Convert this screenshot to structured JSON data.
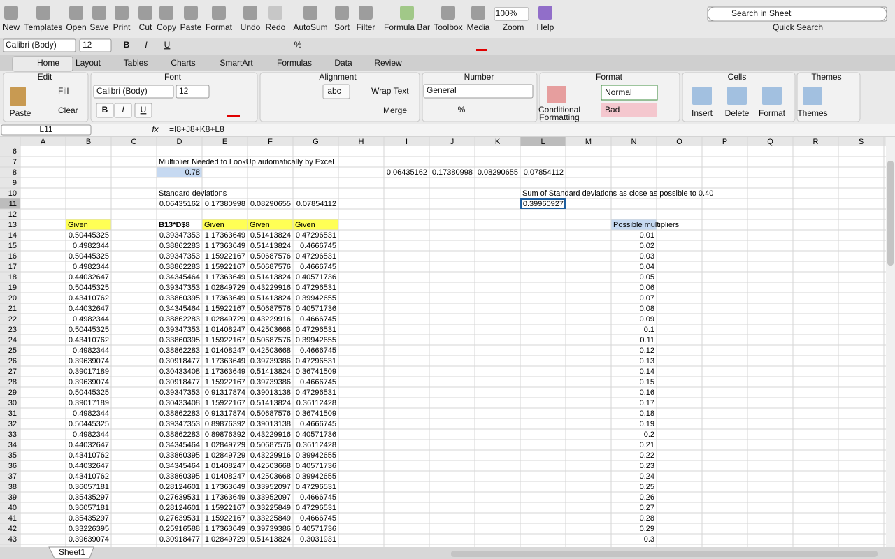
{
  "toolbar": {
    "buttons": [
      "New",
      "Templates",
      "Open",
      "Save",
      "Print",
      "Cut",
      "Copy",
      "Paste",
      "Format",
      "Undo",
      "Redo",
      "AutoSum",
      "Sort",
      "Filter",
      "Formula Bar",
      "Toolbox",
      "Media",
      "Zoom",
      "Help"
    ],
    "zoom": "100%",
    "search_placeholder": "Search in Sheet",
    "search_label": "Quick Search",
    "font": "Calibri (Body)",
    "font_size": "12",
    "format_buttons": [
      "B",
      "I",
      "U"
    ],
    "percent": "%"
  },
  "ribbon": {
    "tabs": [
      "Home",
      "Layout",
      "Tables",
      "Charts",
      "SmartArt",
      "Formulas",
      "Data",
      "Review"
    ],
    "groups": [
      "Edit",
      "Font",
      "Alignment",
      "Number",
      "Format",
      "Cells",
      "Themes"
    ],
    "controls": {
      "paste": "Paste",
      "fill": "Fill",
      "clear": "Clear",
      "font": "Calibri (Body)",
      "font_size": "12",
      "bold": "B",
      "italic": "I",
      "underline": "U",
      "abc": "abc",
      "wrap_text": "Wrap Text",
      "merge": "Merge",
      "number_format": "General",
      "percent": "%",
      "conditional_formatting": [
        "Conditional",
        "Formatting"
      ],
      "style_normal": "Normal",
      "style_bad": "Bad",
      "insert": "Insert",
      "delete": "Delete",
      "format": "Format",
      "themes": "Themes"
    }
  },
  "formula_bar": {
    "cell": "L11",
    "fx": "fx",
    "formula": "=I8+J8+K8+L8"
  },
  "sheet": {
    "columns": [
      "A",
      "B",
      "C",
      "D",
      "E",
      "F",
      "G",
      "H",
      "I",
      "J",
      "K",
      "L",
      "M",
      "N",
      "O",
      "P",
      "Q",
      "R",
      "S"
    ],
    "rows": [
      {
        "n": 6
      },
      {
        "n": 7,
        "D": "Multiplier Needed to LookUp automatically by Excel"
      },
      {
        "n": 8,
        "D": 0.78,
        "I": 0.06435162,
        "J": 0.17380998,
        "K": 0.08290655,
        "L": 0.07854112
      },
      {
        "n": 9
      },
      {
        "n": 10,
        "D": "Standard deviations",
        "L": "Sum of Standard deviations as close as possible to 0.40"
      },
      {
        "n": 11,
        "D": 0.06435162,
        "E": 0.17380998,
        "F": 0.08290655,
        "G": 0.07854112,
        "L": 0.39960927
      },
      {
        "n": 12
      },
      {
        "n": 13,
        "B": "Given",
        "D": "B13*D$8",
        "E": "Given",
        "F": "Given",
        "G": "Given",
        "N": "Possible multipliers"
      },
      {
        "n": 14,
        "B": 0.50445325,
        "D": 0.39347353,
        "E": 1.17363649,
        "F": 0.51413824,
        "G": 0.47296531,
        "N": 0.01
      },
      {
        "n": 15,
        "B": 0.4982344,
        "D": 0.38862283,
        "E": 1.17363649,
        "F": 0.51413824,
        "G": 0.4666745,
        "N": 0.02
      },
      {
        "n": 16,
        "B": 0.50445325,
        "D": 0.39347353,
        "E": 1.15922167,
        "F": 0.50687576,
        "G": 0.47296531,
        "N": 0.03
      },
      {
        "n": 17,
        "B": 0.4982344,
        "D": 0.38862283,
        "E": 1.15922167,
        "F": 0.50687576,
        "G": 0.4666745,
        "N": 0.04
      },
      {
        "n": 18,
        "B": 0.44032647,
        "D": 0.34345464,
        "E": 1.17363649,
        "F": 0.51413824,
        "G": 0.40571736,
        "N": 0.05
      },
      {
        "n": 19,
        "B": 0.50445325,
        "D": 0.39347353,
        "E": 1.02849729,
        "F": 0.43229916,
        "G": 0.47296531,
        "N": 0.06
      },
      {
        "n": 20,
        "B": 0.43410762,
        "D": 0.33860395,
        "E": 1.17363649,
        "F": 0.51413824,
        "G": 0.39942655,
        "N": 0.07
      },
      {
        "n": 21,
        "B": 0.44032647,
        "D": 0.34345464,
        "E": 1.15922167,
        "F": 0.50687576,
        "G": 0.40571736,
        "N": 0.08
      },
      {
        "n": 22,
        "B": 0.4982344,
        "D": 0.38862283,
        "E": 1.02849729,
        "F": 0.43229916,
        "G": 0.4666745,
        "N": 0.09
      },
      {
        "n": 23,
        "B": 0.50445325,
        "D": 0.39347353,
        "E": 1.01408247,
        "F": 0.42503668,
        "G": 0.47296531,
        "N": 0.1
      },
      {
        "n": 24,
        "B": 0.43410762,
        "D": 0.33860395,
        "E": 1.15922167,
        "F": 0.50687576,
        "G": 0.39942655,
        "N": 0.11
      },
      {
        "n": 25,
        "B": 0.4982344,
        "D": 0.38862283,
        "E": 1.01408247,
        "F": 0.42503668,
        "G": 0.4666745,
        "N": 0.12
      },
      {
        "n": 26,
        "B": 0.39639074,
        "D": 0.30918477,
        "E": 1.17363649,
        "F": 0.39739386,
        "G": 0.47296531,
        "N": 0.13
      },
      {
        "n": 27,
        "B": 0.39017189,
        "D": 0.30433408,
        "E": 1.17363649,
        "F": 0.51413824,
        "G": 0.36741509,
        "N": 0.14
      },
      {
        "n": 28,
        "B": 0.39639074,
        "D": 0.30918477,
        "E": 1.15922167,
        "F": 0.39739386,
        "G": 0.4666745,
        "N": 0.15
      },
      {
        "n": 29,
        "B": 0.50445325,
        "D": 0.39347353,
        "E": 0.91317874,
        "F": 0.39013138,
        "G": 0.47296531,
        "N": 0.16
      },
      {
        "n": 30,
        "B": 0.39017189,
        "D": 0.30433408,
        "E": 1.15922167,
        "F": 0.51413824,
        "G": 0.36112428,
        "N": 0.17
      },
      {
        "n": 31,
        "B": 0.4982344,
        "D": 0.38862283,
        "E": 0.91317874,
        "F": 0.50687576,
        "G": 0.36741509,
        "N": 0.18
      },
      {
        "n": 32,
        "B": 0.50445325,
        "D": 0.39347353,
        "E": 0.89876392,
        "F": 0.39013138,
        "G": 0.4666745,
        "N": 0.19
      },
      {
        "n": 33,
        "B": 0.4982344,
        "D": 0.38862283,
        "E": 0.89876392,
        "F": 0.43229916,
        "G": 0.40571736,
        "N": 0.2
      },
      {
        "n": 34,
        "B": 0.44032647,
        "D": 0.34345464,
        "E": 1.02849729,
        "F": 0.50687576,
        "G": 0.36112428,
        "N": 0.21
      },
      {
        "n": 35,
        "B": 0.43410762,
        "D": 0.33860395,
        "E": 1.02849729,
        "F": 0.43229916,
        "G": 0.39942655,
        "N": 0.22
      },
      {
        "n": 36,
        "B": 0.44032647,
        "D": 0.34345464,
        "E": 1.01408247,
        "F": 0.42503668,
        "G": 0.40571736,
        "N": 0.23
      },
      {
        "n": 37,
        "B": 0.43410762,
        "D": 0.33860395,
        "E": 1.01408247,
        "F": 0.42503668,
        "G": 0.39942655,
        "N": 0.24
      },
      {
        "n": 38,
        "B": 0.36057181,
        "D": 0.28124601,
        "E": 1.17363649,
        "F": 0.33952097,
        "G": 0.47296531,
        "N": 0.25
      },
      {
        "n": 39,
        "B": 0.35435297,
        "D": 0.27639531,
        "E": 1.17363649,
        "F": 0.33952097,
        "G": 0.4666745,
        "N": 0.26
      },
      {
        "n": 40,
        "B": 0.36057181,
        "D": 0.28124601,
        "E": 1.15922167,
        "F": 0.33225849,
        "G": 0.47296531,
        "N": 0.27
      },
      {
        "n": 41,
        "B": 0.35435297,
        "D": 0.27639531,
        "E": 1.15922167,
        "F": 0.33225849,
        "G": 0.4666745,
        "N": 0.28
      },
      {
        "n": 42,
        "B": 0.33226395,
        "D": 0.25916588,
        "E": 1.17363649,
        "F": 0.39739386,
        "G": 0.40571736,
        "N": 0.29
      },
      {
        "n": 43,
        "B": 0.39639074,
        "D": 0.30918477,
        "E": 1.02849729,
        "F": 0.51413824,
        "G": 0.3031931,
        "N": 0.3
      }
    ]
  },
  "sheet_tabs": [
    "Sheet1"
  ]
}
